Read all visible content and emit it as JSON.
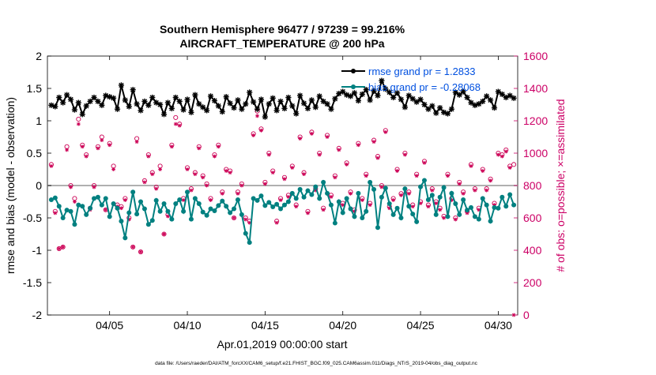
{
  "chart_data": {
    "type": "line",
    "title_line1": "Southern Hemisphere 96477 / 97239 = 99.216%",
    "title_line2": "AIRCRAFT_TEMPERATURE @ 200 hPa",
    "xlabel": "Apr.01,2019 00:00:00 start",
    "ylabel_left": "rmse and bias (model - observation)",
    "ylabel_right": "# of obs: o=possible; ×=assimilated",
    "footnote": "data file: /Users/raeder/DAI/ATM_forcXX/CAM6_setup/f.e21.FHIST_BGC.f09_025.CAM6assim.011/Diags_NTrS_2019-04/obs_diag_output.nc",
    "xlim": [
      1.0,
      31.25
    ],
    "ylim_left": [
      -2,
      2
    ],
    "ylim_right": [
      0,
      1600
    ],
    "x_ticks": [
      {
        "x": 5,
        "label": "04/05"
      },
      {
        "x": 10,
        "label": "04/10"
      },
      {
        "x": 15,
        "label": "04/15"
      },
      {
        "x": 20,
        "label": "04/20"
      },
      {
        "x": 25,
        "label": "04/25"
      },
      {
        "x": 30,
        "label": "04/30"
      }
    ],
    "y_ticks_left": [
      "2",
      "1.5",
      "1",
      "0.5",
      "0",
      "-0.5",
      "-1",
      "-1.5",
      "-2"
    ],
    "y_ticks_right": [
      "1600",
      "1400",
      "1200",
      "1000",
      "800",
      "600",
      "400",
      "200",
      "0"
    ],
    "legend": [
      {
        "label": "rmse grand pr = 1.2833",
        "color": "#000000"
      },
      {
        "label": "bias grand pr = -0.28068",
        "color": "#008080"
      }
    ],
    "colors": {
      "rmse": "#000000",
      "bias": "#008080",
      "obs": "#cc0055",
      "legend_text": "#0050e0",
      "right_axis": "#cc0066"
    },
    "x": [
      1.25,
      1.5,
      1.75,
      2.0,
      2.25,
      2.5,
      2.75,
      3.0,
      3.25,
      3.5,
      3.75,
      4.0,
      4.25,
      4.5,
      4.75,
      5.0,
      5.25,
      5.5,
      5.75,
      6.0,
      6.25,
      6.5,
      6.75,
      7.0,
      7.25,
      7.5,
      7.75,
      8.0,
      8.25,
      8.5,
      8.75,
      9.0,
      9.25,
      9.5,
      9.75,
      10.0,
      10.25,
      10.5,
      10.75,
      11.0,
      11.25,
      11.5,
      11.75,
      12.0,
      12.25,
      12.5,
      12.75,
      13.0,
      13.25,
      13.5,
      13.75,
      14.0,
      14.25,
      14.5,
      14.75,
      15.0,
      15.25,
      15.5,
      15.75,
      16.0,
      16.25,
      16.5,
      16.75,
      17.0,
      17.25,
      17.5,
      17.75,
      18.0,
      18.25,
      18.5,
      18.75,
      19.0,
      19.25,
      19.5,
      19.75,
      20.0,
      20.25,
      20.5,
      20.75,
      21.0,
      21.25,
      21.5,
      21.75,
      22.0,
      22.25,
      22.5,
      22.75,
      23.0,
      23.25,
      23.5,
      23.75,
      24.0,
      24.25,
      24.5,
      24.75,
      25.0,
      25.25,
      25.5,
      25.75,
      26.0,
      26.25,
      26.5,
      26.75,
      27.0,
      27.25,
      27.5,
      27.75,
      28.0,
      28.25,
      28.5,
      28.75,
      29.0,
      29.25,
      29.5,
      29.75,
      30.0,
      30.25,
      30.5,
      30.75,
      31.0
    ],
    "series": [
      {
        "name": "rmse",
        "values": [
          1.24,
          1.22,
          1.36,
          1.28,
          1.4,
          1.33,
          1.17,
          1.28,
          1.1,
          1.23,
          1.3,
          1.36,
          1.3,
          1.24,
          1.39,
          1.37,
          1.35,
          1.18,
          1.55,
          1.32,
          1.22,
          1.48,
          1.26,
          1.16,
          1.3,
          1.24,
          1.36,
          1.28,
          1.25,
          1.1,
          1.28,
          1.19,
          1.36,
          1.3,
          1.17,
          1.33,
          1.13,
          1.4,
          1.26,
          1.21,
          1.16,
          1.38,
          1.31,
          1.23,
          1.14,
          1.37,
          1.27,
          1.2,
          1.32,
          1.18,
          1.26,
          1.44,
          1.29,
          1.18,
          1.33,
          1.06,
          1.26,
          1.35,
          1.16,
          1.3,
          1.19,
          1.36,
          1.23,
          1.11,
          1.39,
          1.27,
          1.19,
          1.32,
          1.21,
          1.38,
          1.3,
          1.26,
          1.18,
          1.34,
          1.42,
          1.45,
          1.4,
          1.38,
          1.43,
          1.31,
          1.41,
          1.48,
          1.32,
          1.46,
          1.39,
          1.62,
          1.49,
          1.44,
          1.36,
          1.43,
          1.33,
          1.21,
          1.39,
          1.34,
          1.29,
          1.33,
          1.25,
          1.18,
          1.23,
          1.12,
          1.2,
          1.13,
          1.11,
          1.18,
          1.44,
          1.4,
          1.45,
          1.36,
          1.28,
          1.24,
          1.26,
          1.3,
          1.38,
          1.32,
          1.2,
          1.45,
          1.41,
          1.36,
          1.39,
          1.35
        ]
      },
      {
        "name": "bias",
        "values": [
          -0.22,
          -0.19,
          -0.32,
          -0.5,
          -0.38,
          -0.4,
          -0.6,
          -0.3,
          -0.32,
          -0.45,
          -0.35,
          -0.2,
          -0.18,
          -0.3,
          -0.2,
          -0.48,
          -0.28,
          -0.35,
          -0.55,
          -0.81,
          -0.42,
          -0.1,
          -0.44,
          -0.25,
          -0.36,
          -0.6,
          -0.54,
          -0.23,
          -0.4,
          -0.28,
          -0.4,
          -0.52,
          -0.28,
          -0.22,
          -0.4,
          -0.1,
          -0.52,
          -0.2,
          -0.28,
          -0.41,
          -0.46,
          -0.36,
          -0.39,
          -0.31,
          -0.24,
          -0.32,
          -0.42,
          -0.36,
          -0.22,
          -0.45,
          -0.74,
          -0.88,
          -0.2,
          -0.23,
          -0.16,
          -0.31,
          -0.26,
          -0.33,
          -0.29,
          -0.36,
          -0.3,
          -0.25,
          -0.12,
          -0.2,
          -0.06,
          -0.18,
          -0.08,
          -0.14,
          -0.02,
          -0.2,
          0.05,
          -0.12,
          -0.3,
          -0.58,
          -0.25,
          -0.42,
          -0.2,
          -0.36,
          -0.48,
          -0.12,
          -0.5,
          -0.4,
          0.05,
          -0.06,
          -0.65,
          -0.18,
          -0.04,
          -0.28,
          -0.45,
          -0.35,
          -0.5,
          -0.05,
          -0.32,
          -0.44,
          -0.56,
          -0.02,
          0.08,
          -0.22,
          -0.15,
          -0.45,
          -0.18,
          -0.03,
          -0.48,
          -0.12,
          -0.28,
          -0.45,
          -0.22,
          -0.38,
          -0.34,
          -0.48,
          -0.52,
          -0.2,
          -0.3,
          -0.55,
          -0.34,
          -0.35,
          -0.18,
          -0.32,
          -0.14,
          -0.3
        ]
      },
      {
        "name": "obs_possible",
        "values": [
          930,
          640,
          410,
          420,
          1040,
          800,
          720,
          1210,
          1050,
          990,
          660,
          800,
          1040,
          1100,
          650,
          1060,
          920,
          680,
          670,
          720,
          600,
          420,
          1090,
          390,
          830,
          990,
          880,
          790,
          920,
          500,
          620,
          1050,
          1220,
          1180,
          720,
          910,
          780,
          880,
          1040,
          860,
          810,
          720,
          990,
          1050,
          760,
          900,
          890,
          600,
          760,
          810,
          600,
          580,
          1120,
          1260,
          1150,
          820,
          1000,
          890,
          580,
          720,
          850,
          740,
          920,
          680,
          1100,
          880,
          640,
          1130,
          780,
          1000,
          660,
          1110,
          740,
          860,
          1030,
          690,
          940,
          760,
          650,
          1060,
          720,
          870,
          690,
          1080,
          980,
          800,
          1140,
          670,
          720,
          900,
          750,
          1000,
          760,
          680,
          870,
          700,
          950,
          680,
          780,
          700,
          660,
          610,
          870,
          720,
          600,
          820,
          760,
          640,
          930,
          780,
          660,
          900,
          780,
          840,
          690,
          1000,
          990,
          1020,
          920,
          930
        ]
      },
      {
        "name": "obs_assimilated",
        "values": [
          920,
          630,
          410,
          420,
          1020,
          790,
          700,
          1180,
          1040,
          980,
          650,
          790,
          1030,
          1080,
          650,
          1050,
          900,
          670,
          660,
          710,
          590,
          420,
          1070,
          390,
          820,
          980,
          870,
          780,
          900,
          500,
          610,
          1040,
          1180,
          1170,
          710,
          900,
          770,
          870,
          1030,
          850,
          800,
          710,
          980,
          1040,
          750,
          890,
          880,
          600,
          750,
          800,
          590,
          570,
          1110,
          1230,
          1140,
          810,
          990,
          880,
          570,
          710,
          840,
          730,
          910,
          670,
          1090,
          870,
          630,
          1120,
          770,
          990,
          650,
          1100,
          730,
          850,
          1020,
          680,
          930,
          750,
          640,
          1050,
          710,
          860,
          680,
          1070,
          970,
          790,
          1130,
          660,
          710,
          890,
          740,
          990,
          750,
          670,
          860,
          690,
          940,
          670,
          770,
          690,
          650,
          600,
          860,
          710,
          590,
          810,
          750,
          630,
          920,
          770,
          650,
          890,
          770,
          830,
          680,
          990,
          980,
          1010,
          910,
          0
        ]
      }
    ]
  }
}
